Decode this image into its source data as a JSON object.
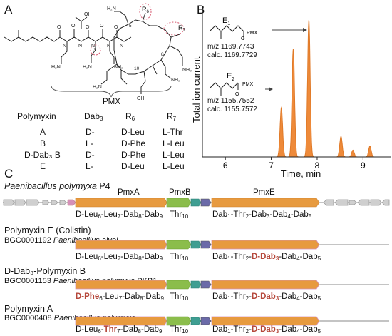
{
  "panels": {
    "a": "A",
    "b": "B",
    "c": "C"
  },
  "molecule": {
    "pmx_label": "PMX",
    "r6": "R",
    "r6_sub": "6",
    "r7": "R",
    "r7_sub": "7",
    "residue_numbers": [
      "3",
      "5",
      "10",
      "8"
    ]
  },
  "table": {
    "headers": [
      "Polymyxin",
      "Dab",
      "R",
      "R"
    ],
    "header_subs": [
      "",
      "3",
      "6",
      "7"
    ],
    "rows": [
      [
        "A",
        "D-",
        "D-Leu",
        "L-Thr"
      ],
      [
        "B",
        "L-",
        "D-Phe",
        "L-Leu"
      ],
      [
        "D-Dab₃ B",
        "D-",
        "D-Phe",
        "L-Leu"
      ],
      [
        "E",
        "L-",
        "D-Leu",
        "L-Leu"
      ]
    ]
  },
  "chart_data": {
    "type": "line",
    "ylabel": "Total ion current",
    "xlabel": "Time, min",
    "xlim": [
      5.5,
      9.6
    ],
    "ticks": [
      "6",
      "7",
      "8",
      "9"
    ],
    "tick_values": [
      6,
      7,
      8,
      9
    ],
    "peaks": [
      {
        "x": 7.22,
        "height": 0.36
      },
      {
        "x": 7.48,
        "height": 0.79
      },
      {
        "x": 7.82,
        "height": 1.0
      },
      {
        "x": 8.52,
        "height": 0.15
      },
      {
        "x": 8.78,
        "height": 0.05
      },
      {
        "x": 9.15,
        "height": 0.08
      }
    ],
    "annotations": [
      {
        "name": "E",
        "sub": "1",
        "mz": "m/z 1169.7743",
        "calc": "calc. 1169.7729",
        "tag": "PMX"
      },
      {
        "name": "E",
        "sub": "2",
        "mz": "m/z 1155.7552",
        "calc": "calc. 1155.7572",
        "tag": "PMX"
      }
    ],
    "colors": {
      "fill": "#ee8a3a",
      "line": "#e07a28"
    }
  },
  "clusters": {
    "p4": {
      "organism": "Paenibacillus polymyxa",
      "strain": "P4",
      "gene_labels": [
        "PmxA",
        "PmxB",
        "PmxE"
      ]
    },
    "c2": {
      "title": "Polymyxin E (Colistin)",
      "bgc": "BGC0001192",
      "organism": "Paenibacillus alvei"
    },
    "c3": {
      "title": "D-Dab₃-Polymyxin B",
      "bgc": "BGC0001153",
      "organism": "Paenibacillus polymyxa",
      "strain": "PKB1"
    },
    "c4": {
      "title": "Polymyxin A",
      "bgc": "BGC0000408",
      "organism": "Paenibacillus polymyxa"
    }
  },
  "colors": {
    "orange_gene": "#e79a3f",
    "green_gene": "#8bbd4b",
    "teal_gene": "#3f9e92",
    "purple_gene": "#6b6aa8",
    "gray_gene": "#cfcfcf",
    "pink_gene": "#d58fb8",
    "highlight_red": "#b5473a"
  }
}
